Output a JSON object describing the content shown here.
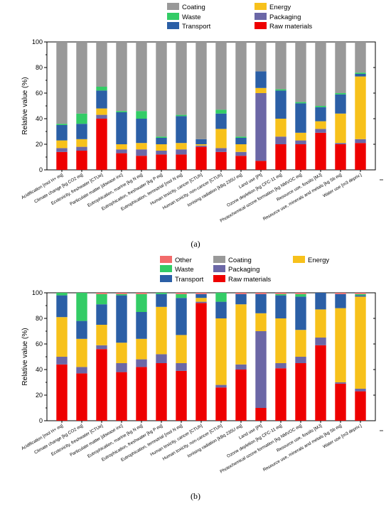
{
  "chart_data": [
    {
      "type": "bar",
      "stacked": true,
      "panel_label": "(a)",
      "ylabel": "Relative value (%)",
      "ylim": [
        0,
        100
      ],
      "yticks": [
        0,
        20,
        40,
        60,
        80,
        100
      ],
      "legend": [
        {
          "name": "Coating",
          "color": "#999999"
        },
        {
          "name": "Waste",
          "color": "#33cc66"
        },
        {
          "name": "Transport",
          "color": "#2b5fa6"
        },
        {
          "name": "Energy",
          "color": "#f7c11b"
        },
        {
          "name": "Packaging",
          "color": "#6b67a6"
        },
        {
          "name": "Raw materials",
          "color": "#ee0000"
        }
      ],
      "categories": [
        "Acidification [mol H+ eq]",
        "Climate change [kg CO2 eq]",
        "Ecotoxicity, freshwater [CTUe]",
        "Particulate matter [disease inc]",
        "Eutrophication, marine [kg N eq]",
        "Eutrophication, freshwater [kg P eq]",
        "Eutrophication, terrestrial [mol N eq]",
        "Human toxicity, cancer [CTUh]",
        "Human toxicity, non-cancer [CTUh]",
        "Ionising radiation [kBq 235U eq]",
        "Land use [Pt]",
        "Ozone depletion [kg CFC-11 eq]",
        "Photochemical ozone formation [kg NMVOC eq]",
        "Resource use, fossils [MJ]",
        "Resource use, minerals and metals [kg Sb eq]",
        "Water use [m3 depriv.]"
      ],
      "series": [
        {
          "name": "Raw materials",
          "color": "#ee0000",
          "values": [
            14,
            15,
            40,
            13,
            11,
            12,
            12,
            18,
            14,
            11,
            7,
            20,
            20,
            29,
            20,
            21
          ]
        },
        {
          "name": "Packaging",
          "color": "#6b67a6",
          "values": [
            3,
            3,
            3,
            3,
            5,
            3,
            4,
            1,
            3,
            3,
            53,
            6,
            3,
            3,
            1,
            3
          ]
        },
        {
          "name": "Energy",
          "color": "#f7c11b",
          "values": [
            6,
            6,
            5,
            4,
            5,
            5,
            5,
            1,
            15,
            6,
            4,
            14,
            6,
            6,
            23,
            49
          ]
        },
        {
          "name": "Transport",
          "color": "#2b5fa6",
          "values": [
            12,
            12,
            14,
            25,
            19,
            5,
            21,
            4,
            12,
            5,
            13,
            22,
            23,
            11,
            15,
            2
          ]
        },
        {
          "name": "Waste",
          "color": "#33cc66",
          "values": [
            1,
            8,
            3,
            1,
            6,
            1,
            1,
            0,
            3,
            1,
            0,
            1,
            1,
            1,
            1,
            1
          ]
        },
        {
          "name": "Coating",
          "color": "#999999",
          "values": [
            64,
            56,
            35,
            54,
            54,
            74,
            57,
            76,
            53,
            74,
            23,
            37,
            47,
            50,
            40,
            24
          ]
        }
      ]
    },
    {
      "type": "bar",
      "stacked": true,
      "panel_label": "(b)",
      "ylabel": "Relative value (%)",
      "ylim": [
        0,
        100
      ],
      "yticks": [
        0,
        20,
        40,
        60,
        80,
        100
      ],
      "legend": [
        {
          "name": "Other",
          "color": "#f26b6b"
        },
        {
          "name": "Coating",
          "color": "#999999"
        },
        {
          "name": "Energy",
          "color": "#f7c11b"
        },
        {
          "name": "Waste",
          "color": "#33cc66"
        },
        {
          "name": "Packaging",
          "color": "#6b67a6"
        },
        {
          "name": "Transport",
          "color": "#2b5fa6"
        },
        {
          "name": "Raw materials",
          "color": "#ee0000"
        }
      ],
      "categories": [
        "Acidification [mol H+ eq]",
        "Climate change [kg CO2 eq]",
        "Ecotoxicity, freshwater [CTUe]",
        "Particulate matter [disease inc]",
        "Eutrophication, marine [kg N eq]",
        "Eutrophication, freshwater [kg P eq]",
        "Eutrophication, terrestrial [mol N eq]",
        "Human toxicity, cancer [CTUh]",
        "Human toxicity, non-cancer [CTUh]",
        "Ionising radiation [kBq 235U eq]",
        "Land use [Pt]",
        "Ozone depletion [kg CFC-11 eq]",
        "Photochemical ozone formation [kg NMVOC eq]",
        "Resource use, fossils [MJ]",
        "Resource use, minerals and metals [kg Sb eq]",
        "Water use [m3 depriv.]"
      ],
      "series": [
        {
          "name": "Raw materials",
          "color": "#ee0000",
          "values": [
            44,
            37,
            56,
            38,
            42,
            45,
            39,
            92,
            26,
            40,
            10,
            41,
            45,
            59,
            29,
            23
          ]
        },
        {
          "name": "Packaging",
          "color": "#6b67a6",
          "values": [
            6,
            5,
            3,
            7,
            6,
            7,
            6,
            1,
            2,
            4,
            60,
            4,
            5,
            6,
            1,
            2
          ]
        },
        {
          "name": "Energy",
          "color": "#f7c11b",
          "values": [
            31,
            22,
            16,
            16,
            16,
            37,
            22,
            3,
            52,
            47,
            14,
            35,
            21,
            22,
            58,
            72
          ]
        },
        {
          "name": "Transport",
          "color": "#2b5fa6",
          "values": [
            17,
            14,
            16,
            37,
            21,
            10,
            29,
            3,
            13,
            8,
            15,
            18,
            26,
            13,
            11,
            1
          ]
        },
        {
          "name": "Waste",
          "color": "#33cc66",
          "values": [
            2,
            22,
            8,
            1,
            14,
            1,
            3,
            0,
            7,
            0,
            0,
            1,
            2,
            0,
            0,
            1
          ]
        },
        {
          "name": "Coating",
          "color": "#999999",
          "values": [
            0,
            0,
            0,
            0,
            0,
            0,
            0,
            0,
            0,
            0,
            0,
            0,
            0,
            0,
            0,
            0
          ]
        },
        {
          "name": "Other",
          "color": "#f26b6b",
          "values": [
            0,
            0,
            1,
            1,
            1,
            0,
            1,
            1,
            0,
            1,
            1,
            1,
            1,
            0,
            1,
            1
          ]
        }
      ]
    }
  ]
}
